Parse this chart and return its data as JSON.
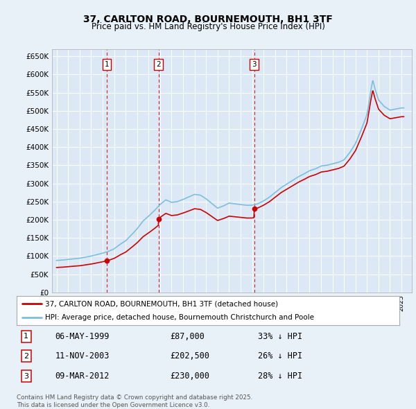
{
  "title": "37, CARLTON ROAD, BOURNEMOUTH, BH1 3TF",
  "subtitle": "Price paid vs. HM Land Registry's House Price Index (HPI)",
  "background_color": "#e8f0f8",
  "plot_bg_color": "#dce8f5",
  "grid_color": "#ffffff",
  "hpi_color": "#7bbfde",
  "price_color": "#cc0000",
  "vline_color": "#cc0000",
  "ylim": [
    0,
    670000
  ],
  "yticks": [
    0,
    50000,
    100000,
    150000,
    200000,
    250000,
    300000,
    350000,
    400000,
    450000,
    500000,
    550000,
    600000,
    650000
  ],
  "ytick_labels": [
    "£0",
    "£50K",
    "£100K",
    "£150K",
    "£200K",
    "£250K",
    "£300K",
    "£350K",
    "£400K",
    "£450K",
    "£500K",
    "£550K",
    "£600K",
    "£650K"
  ],
  "sale_years": [
    1999.35,
    2003.86,
    2012.18
  ],
  "sale_prices": [
    87000,
    202500,
    230000
  ],
  "sale_labels": [
    "1",
    "2",
    "3"
  ],
  "legend_line1": "37, CARLTON ROAD, BOURNEMOUTH, BH1 3TF (detached house)",
  "legend_line2": "HPI: Average price, detached house, Bournemouth Christchurch and Poole",
  "footnote": "Contains HM Land Registry data © Crown copyright and database right 2025.\nThis data is licensed under the Open Government Licence v3.0.",
  "table_rows": [
    {
      "num": "1",
      "date": "06-MAY-1999",
      "price": "£87,000",
      "pct": "33% ↓ HPI"
    },
    {
      "num": "2",
      "date": "11-NOV-2003",
      "price": "£202,500",
      "pct": "26% ↓ HPI"
    },
    {
      "num": "3",
      "date": "09-MAR-2012",
      "price": "£230,000",
      "pct": "28% ↓ HPI"
    }
  ],
  "hpi_points": {
    "1995.0": 88000,
    "1995.5": 89000,
    "1996.0": 91000,
    "1996.5": 92500,
    "1997.0": 94000,
    "1997.5": 97000,
    "1998.0": 100000,
    "1998.5": 104000,
    "1999.0": 108000,
    "1999.5": 113000,
    "2000.0": 120000,
    "2000.5": 132000,
    "2001.0": 142000,
    "2001.5": 158000,
    "2002.0": 175000,
    "2002.5": 196000,
    "2003.0": 210000,
    "2003.5": 225000,
    "2004.0": 242000,
    "2004.5": 255000,
    "2005.0": 248000,
    "2005.5": 250000,
    "2006.0": 256000,
    "2006.5": 263000,
    "2007.0": 270000,
    "2007.5": 268000,
    "2008.0": 258000,
    "2008.5": 245000,
    "2009.0": 232000,
    "2009.5": 238000,
    "2010.0": 246000,
    "2010.5": 244000,
    "2011.0": 242000,
    "2011.5": 240000,
    "2012.0": 240000,
    "2012.5": 244000,
    "2013.0": 252000,
    "2013.5": 262000,
    "2014.0": 275000,
    "2014.5": 288000,
    "2015.0": 298000,
    "2015.5": 308000,
    "2016.0": 318000,
    "2016.5": 326000,
    "2017.0": 335000,
    "2017.5": 340000,
    "2018.0": 348000,
    "2018.5": 350000,
    "2019.0": 354000,
    "2019.5": 358000,
    "2020.0": 365000,
    "2020.5": 385000,
    "2021.0": 410000,
    "2021.5": 448000,
    "2022.0": 490000,
    "2022.3": 550000,
    "2022.5": 585000,
    "2022.7": 560000,
    "2023.0": 530000,
    "2023.5": 512000,
    "2024.0": 502000,
    "2024.5": 505000,
    "2025.0": 508000
  }
}
